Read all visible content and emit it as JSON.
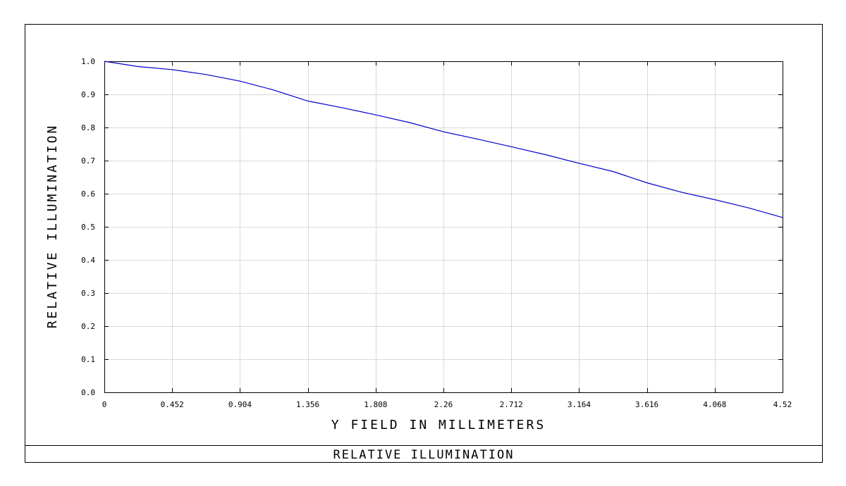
{
  "chart_data": {
    "type": "line",
    "title": "RELATIVE ILLUMINATION",
    "xlabel": "Y FIELD IN MILLIMETERS",
    "ylabel": "RELATIVE ILLUMINATION",
    "xlim": [
      0,
      4.52
    ],
    "ylim": [
      0.0,
      1.0
    ],
    "x_ticks": [
      "0",
      "0.452",
      "0.904",
      "1.356",
      "1.808",
      "2.26",
      "2.712",
      "3.164",
      "3.616",
      "4.068",
      "4.52"
    ],
    "y_ticks": [
      "0.0",
      "0.1",
      "0.2",
      "0.3",
      "0.4",
      "0.5",
      "0.6",
      "0.7",
      "0.8",
      "0.9",
      "1.0"
    ],
    "grid": true,
    "line_color": "#0000cc",
    "series": [
      {
        "x": [
          0,
          0.226,
          0.452,
          0.678,
          0.904,
          1.13,
          1.356,
          1.582,
          1.808,
          2.034,
          2.26,
          2.486,
          2.712,
          2.938,
          3.164,
          3.39,
          3.616,
          3.842,
          4.068,
          4.294,
          4.52
        ],
        "y": [
          1.0,
          0.984,
          0.975,
          0.96,
          0.94,
          0.913,
          0.88,
          0.86,
          0.838,
          0.815,
          0.787,
          0.765,
          0.742,
          0.718,
          0.692,
          0.667,
          0.633,
          0.605,
          0.582,
          0.557,
          0.528
        ]
      }
    ]
  }
}
